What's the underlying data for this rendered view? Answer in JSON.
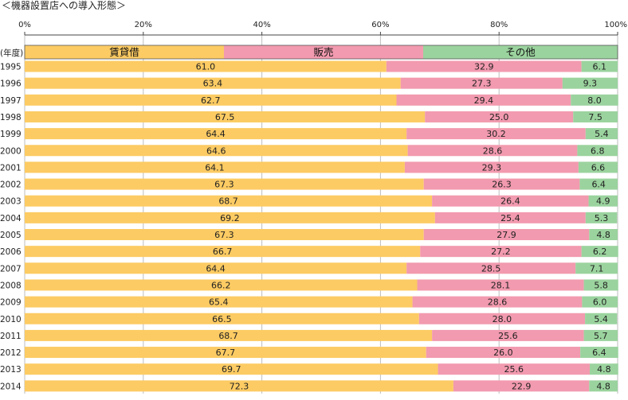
{
  "chart_data": {
    "type": "bar",
    "orientation": "horizontal",
    "stacked": true,
    "title": "＜機器設置店への導入形態＞",
    "xlim": [
      0,
      100
    ],
    "x_ticks": [
      "0%",
      "20%",
      "40%",
      "60%",
      "80%",
      "100%"
    ],
    "x_tick_values": [
      0,
      20,
      40,
      60,
      80,
      100
    ],
    "grid": true,
    "category_header": "(年度)",
    "categories": [
      "1995",
      "1996",
      "1997",
      "1998",
      "1999",
      "2000",
      "2001",
      "2002",
      "2003",
      "2004",
      "2005",
      "2006",
      "2007",
      "2008",
      "2009",
      "2010",
      "2011",
      "2012",
      "2013",
      "2014"
    ],
    "header_segments": [
      33.6,
      33.6,
      32.8
    ],
    "series": [
      {
        "name": "賃貸借",
        "color": "#FCCB63",
        "values": [
          61.0,
          63.4,
          62.7,
          67.5,
          64.4,
          64.6,
          64.1,
          67.3,
          68.7,
          69.2,
          67.3,
          66.7,
          64.4,
          66.2,
          65.4,
          66.5,
          68.7,
          67.7,
          69.7,
          72.3
        ],
        "labels": [
          "61.0",
          "63.4",
          "62.7",
          "67.5",
          "64.4",
          "64.6",
          "64.1",
          "67.3",
          "68.7",
          "69.2",
          "67.3",
          "66.7",
          "64.4",
          "66.2",
          "65.4",
          "66.5",
          "68.7",
          "67.7",
          "69.7",
          "72.3"
        ]
      },
      {
        "name": "販売",
        "color": "#F29AAF",
        "values": [
          32.9,
          27.3,
          29.4,
          25.0,
          30.2,
          28.6,
          29.3,
          26.3,
          26.4,
          25.4,
          27.9,
          27.2,
          28.5,
          28.1,
          28.6,
          28.0,
          25.6,
          26.0,
          25.6,
          22.9
        ],
        "labels": [
          "32.9",
          "27.3",
          "29.4",
          "25.0",
          "30.2",
          "28.6",
          "29.3",
          "26.3",
          "26.4",
          "25.4",
          "27.9",
          "27.2",
          "28.5",
          "28.1",
          "28.6",
          "28.0",
          "25.6",
          "26.0",
          "25.6",
          "22.9"
        ]
      },
      {
        "name": "その他",
        "color": "#9BD39E",
        "values": [
          6.1,
          9.3,
          8.0,
          7.5,
          5.4,
          6.8,
          6.6,
          6.4,
          4.9,
          5.3,
          4.8,
          6.2,
          7.1,
          5.8,
          6.0,
          5.4,
          5.7,
          6.4,
          4.8,
          4.8
        ],
        "labels": [
          "6.1",
          "9.3",
          "8.0",
          "7.5",
          "5.4",
          "6.8",
          "6.6",
          "6.4",
          "4.9",
          "5.3",
          "4.8",
          "6.2",
          "7.1",
          "5.8",
          "6.0",
          "5.4",
          "5.7",
          "6.4",
          "4.8",
          "4.8"
        ]
      }
    ]
  }
}
